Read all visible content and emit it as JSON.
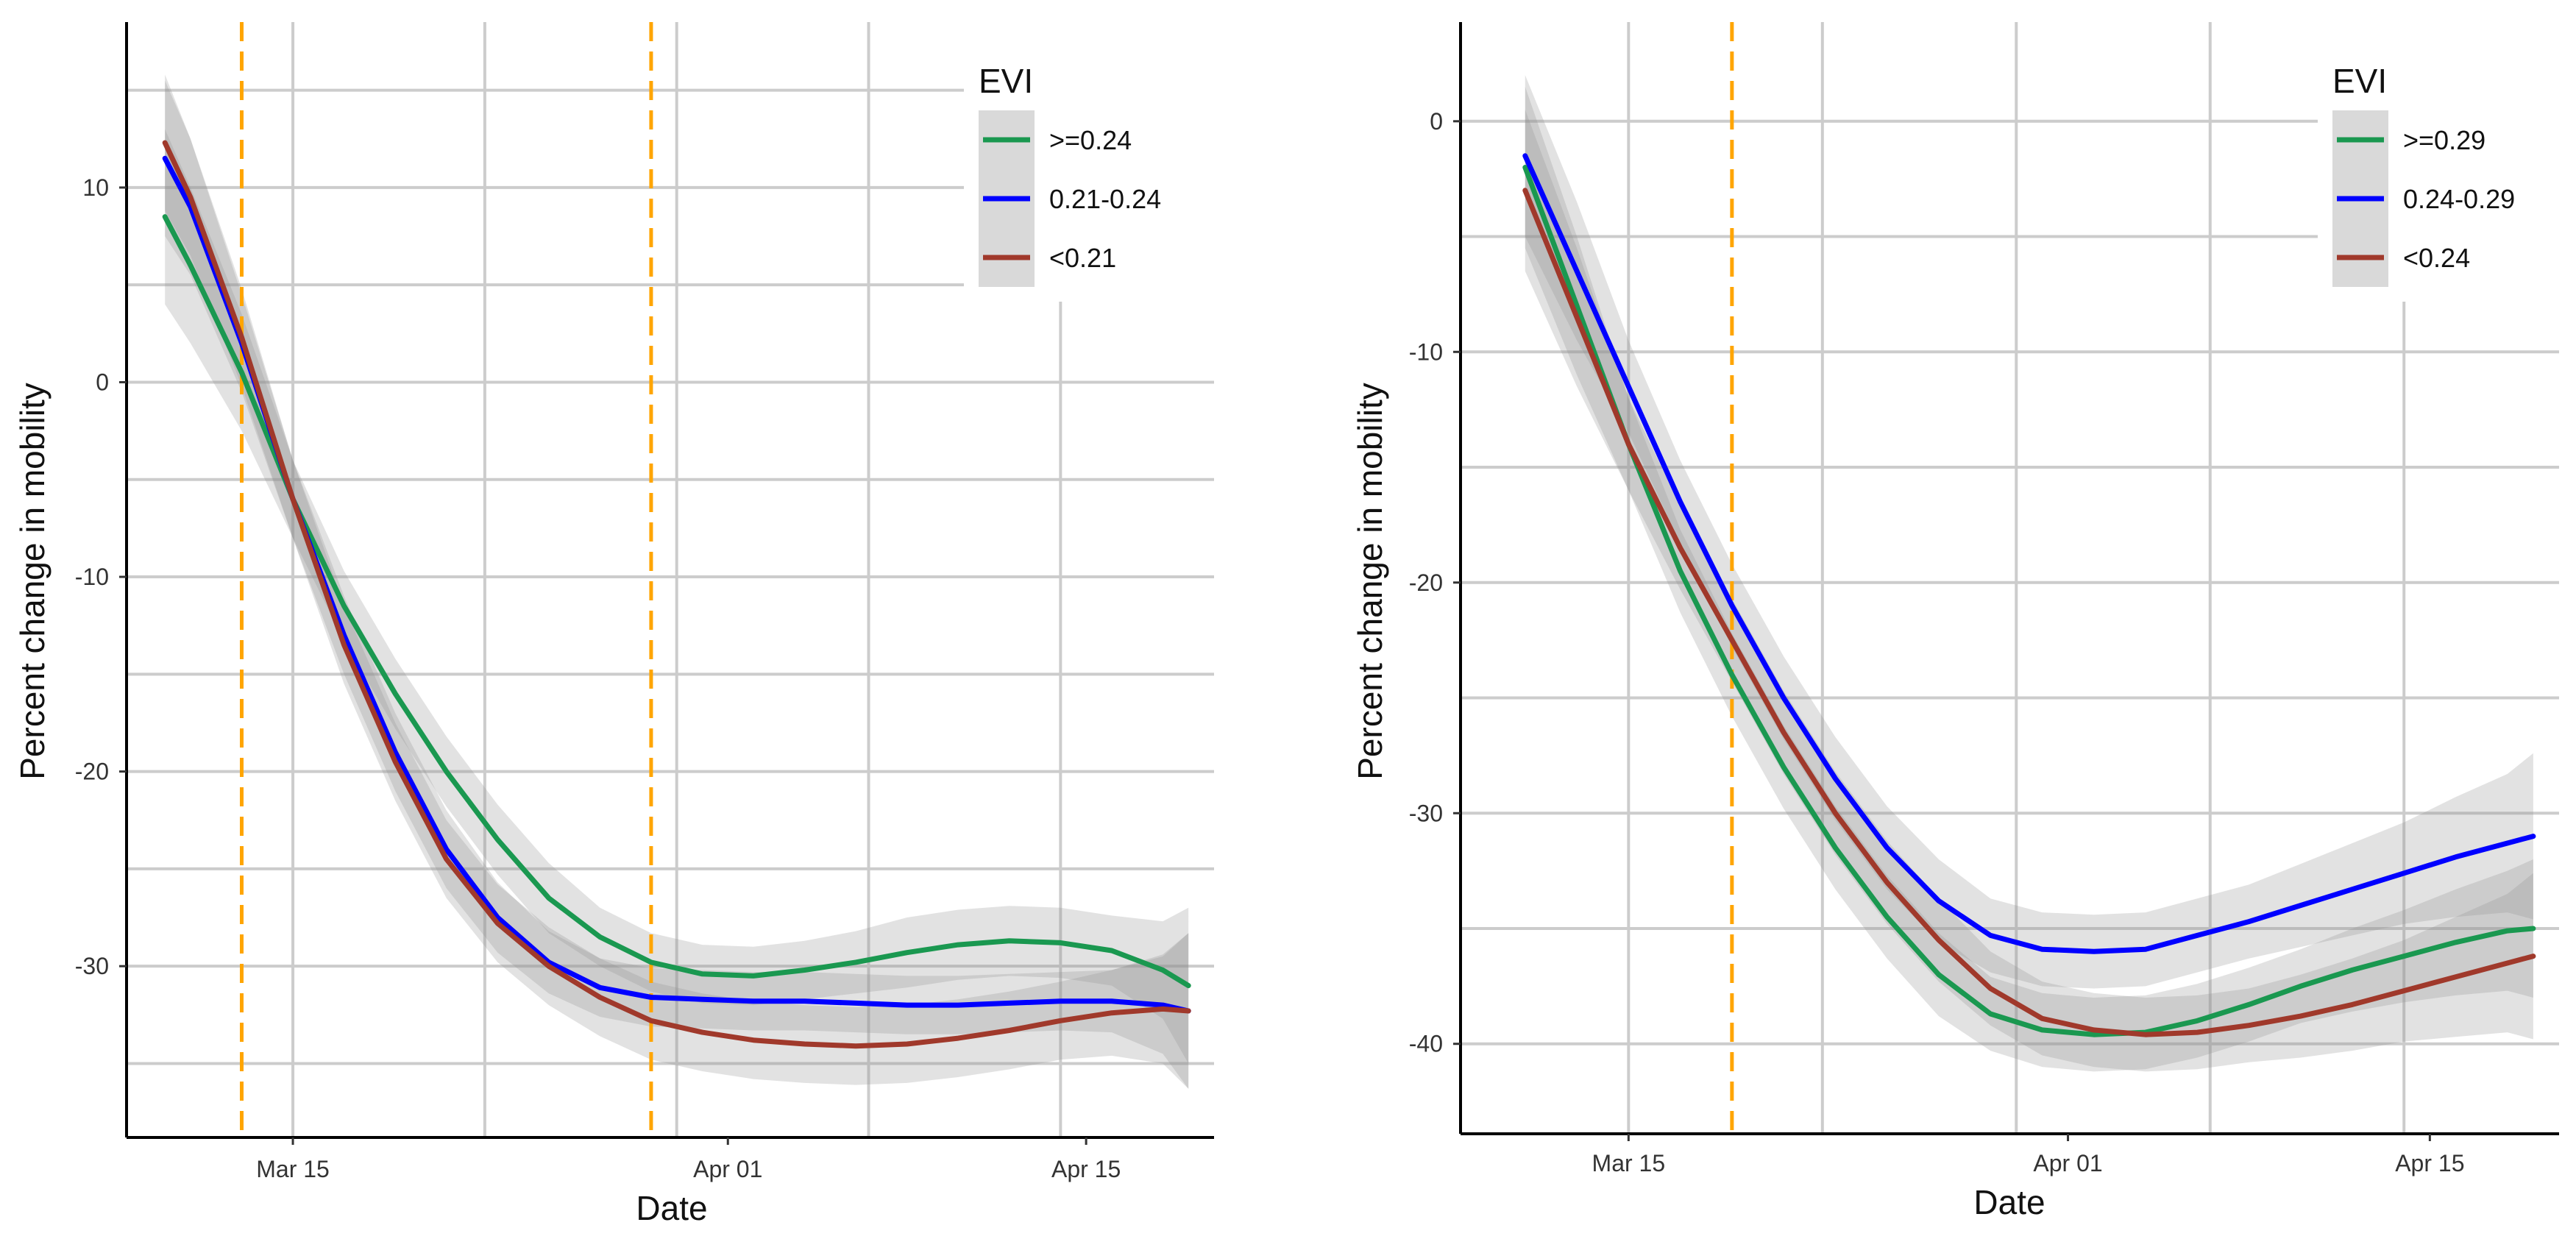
{
  "chart_data": [
    {
      "type": "line",
      "title": "",
      "xlabel": "Date",
      "ylabel": "Percent change in mobility",
      "x_ticks": [
        {
          "day": 15,
          "label": "Mar 15"
        },
        {
          "day": 32,
          "label": "Apr 01"
        },
        {
          "day": 46,
          "label": "Apr 15"
        }
      ],
      "xlim": [
        8.5,
        51
      ],
      "y_ticks": [
        10,
        0,
        -10,
        -20,
        -30
      ],
      "ylim": [
        -38.8,
        18.5
      ],
      "vlines": [
        13,
        29
      ],
      "vline_color": "#FFA500",
      "grid": true,
      "legend": {
        "title": "EVI",
        "position": "top-right"
      },
      "series": [
        {
          "name": ">=0.24",
          "color": "#1a9850",
          "x": [
            10,
            11,
            13,
            15,
            17,
            19,
            21,
            23,
            25,
            27,
            29,
            31,
            33,
            35,
            37,
            39,
            41,
            43,
            45,
            47,
            49,
            50
          ],
          "y": [
            8.5,
            6,
            0.5,
            -6,
            -11.5,
            -16,
            -20,
            -23.5,
            -26.5,
            -28.5,
            -29.8,
            -30.4,
            -30.5,
            -30.2,
            -29.8,
            -29.3,
            -28.9,
            -28.7,
            -28.8,
            -29.2,
            -30.2,
            -31
          ],
          "ci": [
            4.5,
            4,
            3,
            2,
            1.8,
            1.8,
            1.8,
            1.8,
            1.8,
            1.5,
            1.5,
            1.5,
            1.5,
            1.5,
            1.6,
            1.8,
            1.8,
            1.8,
            1.8,
            1.8,
            2.5,
            4
          ]
        },
        {
          "name": "0.21-0.24",
          "color": "#0000ff",
          "x": [
            10,
            11,
            13,
            15,
            17,
            19,
            21,
            23,
            25,
            27,
            29,
            31,
            33,
            35,
            37,
            39,
            41,
            43,
            45,
            47,
            49,
            50
          ],
          "y": [
            11.5,
            9,
            2,
            -6,
            -13,
            -19,
            -24,
            -27.5,
            -29.8,
            -31.1,
            -31.6,
            -31.7,
            -31.8,
            -31.8,
            -31.9,
            -32,
            -32,
            -31.9,
            -31.8,
            -31.8,
            -32,
            -32.3
          ],
          "ci": [
            4,
            3.5,
            2.5,
            2,
            2,
            2,
            2,
            1.8,
            1.6,
            1.5,
            1.5,
            1.5,
            1.5,
            1.5,
            1.5,
            1.5,
            1.5,
            1.5,
            1.5,
            1.6,
            2.5,
            4
          ]
        },
        {
          "name": "<0.21",
          "color": "#a0392b",
          "x": [
            10,
            11,
            13,
            15,
            17,
            19,
            21,
            23,
            25,
            27,
            29,
            31,
            33,
            35,
            37,
            39,
            41,
            43,
            45,
            47,
            49,
            50
          ],
          "y": [
            12.3,
            9.5,
            2.3,
            -6,
            -13.5,
            -19.5,
            -24.5,
            -27.8,
            -30,
            -31.6,
            -32.8,
            -33.4,
            -33.8,
            -34,
            -34.1,
            -34,
            -33.7,
            -33.3,
            -32.8,
            -32.4,
            -32.2,
            -32.3
          ],
          "ci": [
            3.5,
            3,
            2.5,
            2,
            2,
            2,
            2,
            2,
            2,
            2,
            2,
            2,
            2,
            2,
            2,
            2,
            2,
            2,
            2,
            2.2,
            2.8,
            4
          ]
        }
      ]
    },
    {
      "type": "line",
      "title": "",
      "xlabel": "Date",
      "ylabel": "Percent change in mobility",
      "x_ticks": [
        {
          "day": 15,
          "label": "Mar 15"
        },
        {
          "day": 32,
          "label": "Apr 01"
        },
        {
          "day": 46,
          "label": "Apr 15"
        }
      ],
      "xlim": [
        8.5,
        51
      ],
      "y_ticks": [
        0,
        -10,
        -20,
        -30,
        -40
      ],
      "ylim": [
        -43.9,
        4.3
      ],
      "vlines": [
        19
      ],
      "vline_color": "#FFA500",
      "grid": true,
      "legend": {
        "title": "EVI",
        "position": "top-right"
      },
      "series": [
        {
          "name": ">=0.29",
          "color": "#1a9850",
          "x": [
            11,
            13,
            15,
            17,
            19,
            21,
            23,
            25,
            27,
            29,
            31,
            33,
            35,
            37,
            39,
            41,
            43,
            45,
            47,
            49,
            50
          ],
          "y": [
            -2,
            -8,
            -14,
            -19.5,
            -24,
            -28,
            -31.5,
            -34.5,
            -37,
            -38.7,
            -39.4,
            -39.6,
            -39.5,
            -39,
            -38.3,
            -37.5,
            -36.8,
            -36.2,
            -35.6,
            -35.1,
            -35
          ],
          "ci": [
            3.5,
            3,
            2,
            1.8,
            1.8,
            1.8,
            1.8,
            1.8,
            1.8,
            1.6,
            1.6,
            1.6,
            1.6,
            1.6,
            1.6,
            1.6,
            1.8,
            2,
            2.3,
            2.6,
            3
          ]
        },
        {
          "name": "0.24-0.29",
          "color": "#0000ff",
          "x": [
            11,
            13,
            15,
            17,
            19,
            21,
            23,
            25,
            27,
            29,
            31,
            33,
            35,
            37,
            39,
            41,
            43,
            45,
            47,
            49,
            50
          ],
          "y": [
            -1.5,
            -6.5,
            -11.5,
            -16.5,
            -21,
            -25,
            -28.5,
            -31.5,
            -33.8,
            -35.3,
            -35.9,
            -36,
            -35.9,
            -35.3,
            -34.7,
            -34,
            -33.3,
            -32.6,
            -31.9,
            -31.3,
            -31
          ],
          "ci": [
            3.5,
            3,
            2,
            1.8,
            1.8,
            1.8,
            1.8,
            1.8,
            1.8,
            1.6,
            1.6,
            1.6,
            1.6,
            1.6,
            1.6,
            1.8,
            2,
            2.2,
            2.6,
            3,
            3.6
          ]
        },
        {
          "name": "<0.24",
          "color": "#a0392b",
          "x": [
            11,
            13,
            15,
            17,
            19,
            21,
            23,
            25,
            27,
            29,
            31,
            33,
            35,
            37,
            39,
            41,
            43,
            45,
            47,
            49,
            50
          ],
          "y": [
            -3,
            -8.5,
            -14,
            -18.5,
            -22.5,
            -26.5,
            -30,
            -33,
            -35.5,
            -37.6,
            -38.9,
            -39.4,
            -39.6,
            -39.5,
            -39.2,
            -38.8,
            -38.3,
            -37.7,
            -37.1,
            -36.5,
            -36.2
          ],
          "ci": [
            3.5,
            3,
            2,
            1.8,
            1.8,
            1.8,
            1.8,
            1.8,
            1.8,
            1.6,
            1.6,
            1.6,
            1.6,
            1.6,
            1.6,
            1.8,
            2,
            2.2,
            2.6,
            3,
            3.6
          ]
        }
      ]
    }
  ]
}
